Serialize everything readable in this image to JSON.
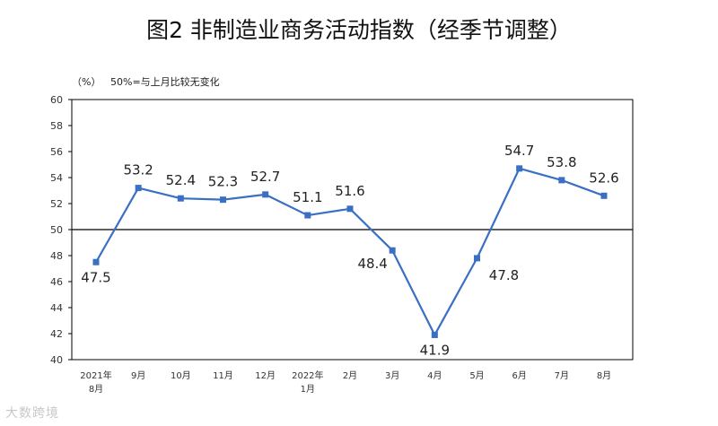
{
  "chart_data": {
    "type": "line",
    "title": "图2  非制造业商务活动指数（经季节调整）",
    "unit": "（%）",
    "note": "50%=与上月比较无变化",
    "categories": [
      [
        "2021年",
        "8月"
      ],
      [
        "9月"
      ],
      [
        "10月"
      ],
      [
        "11月"
      ],
      [
        "12月"
      ],
      [
        "2022年",
        "1月"
      ],
      [
        "2月"
      ],
      [
        "3月"
      ],
      [
        "4月"
      ],
      [
        "5月"
      ],
      [
        "6月"
      ],
      [
        "7月"
      ],
      [
        "8月"
      ]
    ],
    "values": [
      47.5,
      53.2,
      52.4,
      52.3,
      52.7,
      51.1,
      51.6,
      48.4,
      41.9,
      47.8,
      54.7,
      53.8,
      52.6
    ],
    "yticks": [
      40,
      42,
      44,
      46,
      48,
      50,
      52,
      54,
      56,
      58,
      60
    ],
    "ylim": [
      40,
      60
    ],
    "reference_line": 50,
    "colors": {
      "line": "#3a6fc4",
      "marker": "#3a6fc4",
      "reference": "#000000",
      "frame": "#000000"
    }
  },
  "watermark": "大数跨境"
}
